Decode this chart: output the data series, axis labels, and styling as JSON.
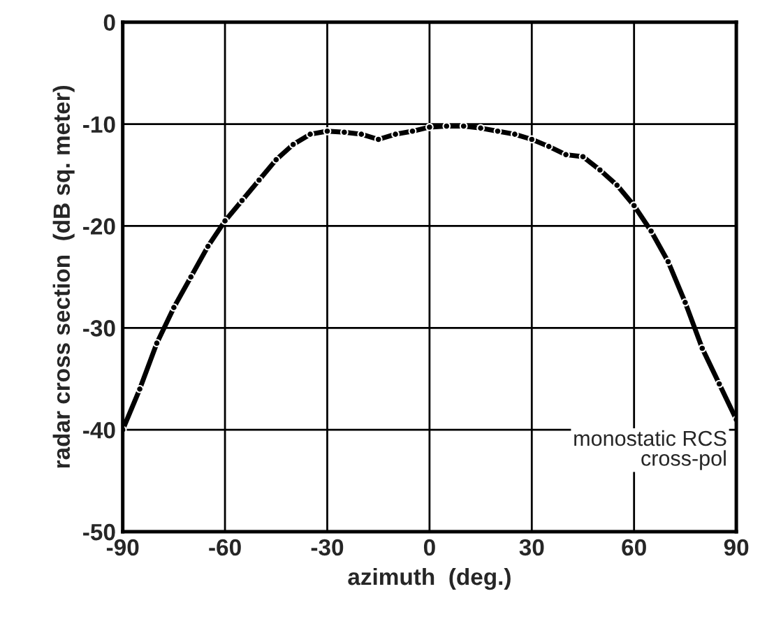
{
  "chart_data": {
    "type": "line",
    "xlabel": "azimuth  (deg.)",
    "ylabel": "radar cross section  (dB sq. meter)",
    "x": [
      -90,
      -85,
      -80,
      -75,
      -70,
      -65,
      -60,
      -55,
      -50,
      -45,
      -40,
      -35,
      -30,
      -25,
      -20,
      -15,
      -10,
      -5,
      0,
      5,
      10,
      15,
      20,
      25,
      30,
      35,
      40,
      45,
      50,
      55,
      60,
      65,
      70,
      75,
      80,
      85,
      90
    ],
    "series": [
      {
        "color": "#000000",
        "values": [
          -40,
          -36,
          -31.5,
          -28,
          -25,
          -22,
          -19.5,
          -17.5,
          -15.5,
          -13.5,
          -12,
          -11,
          -10.7,
          -10.8,
          -11,
          -11.5,
          -11,
          -10.7,
          -10.3,
          -10.2,
          -10.2,
          -10.4,
          -10.7,
          -11,
          -11.5,
          -12.2,
          -13,
          -13.2,
          -14.5,
          -16,
          -18,
          -20.5,
          -23.5,
          -27.5,
          -32,
          -35.5,
          -39
        ]
      }
    ],
    "xlim": [
      -90,
      90
    ],
    "xticks": [
      -90,
      -60,
      -30,
      0,
      30,
      60,
      90
    ],
    "ylim": [
      -50,
      0
    ],
    "yticks": [
      -50,
      -40,
      -30,
      -20,
      -10,
      0
    ],
    "grid": true,
    "marker": "circle",
    "line_style": "solid",
    "annotations": [
      "monostatic RCS\ncross-pol"
    ]
  }
}
